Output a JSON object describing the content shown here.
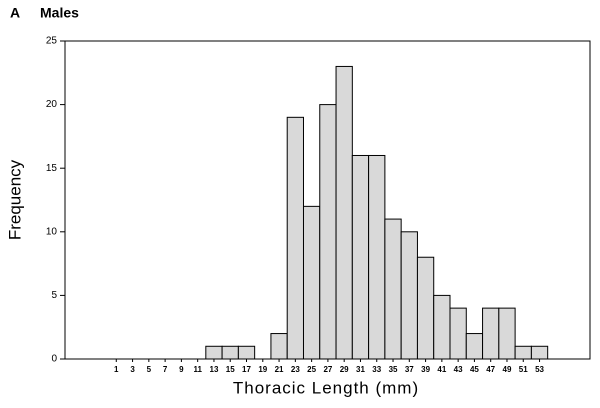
{
  "chart_data": {
    "type": "histogram",
    "panel_label": "A",
    "title": "Males",
    "xlabel": "Thoracic Length (mm)",
    "ylabel": "Frequency",
    "bins": [
      0,
      2,
      4,
      6,
      8,
      10,
      12,
      14,
      16,
      18,
      20,
      22,
      24,
      26,
      28,
      30,
      32,
      34,
      36,
      38,
      40,
      42,
      44,
      46,
      48,
      50,
      52,
      54
    ],
    "counts": [
      0,
      0,
      0,
      0,
      0,
      0,
      1,
      1,
      1,
      0,
      2,
      19,
      12,
      20,
      23,
      16,
      16,
      11,
      10,
      8,
      5,
      4,
      2,
      4,
      4,
      1,
      1
    ],
    "color": "#d9d9d9",
    "xlim": [
      -5.3,
      59.2
    ],
    "ylim": [
      0,
      25
    ],
    "xticks": [
      1,
      3,
      5,
      7,
      9,
      11,
      13,
      15,
      17,
      19,
      21,
      23,
      25,
      27,
      29,
      31,
      33,
      35,
      37,
      39,
      41,
      43,
      45,
      47,
      49,
      51,
      53
    ],
    "yticks": [
      0,
      5,
      10,
      15,
      20,
      25
    ]
  }
}
